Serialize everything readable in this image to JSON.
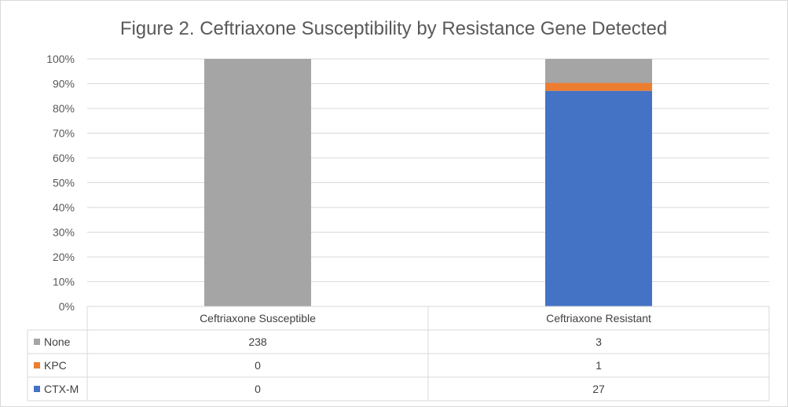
{
  "chart_data": {
    "type": "bar",
    "stacking": "percent",
    "title": "Figure 2. Ceftriaxone Susceptibility by Resistance Gene Detected",
    "categories": [
      "Ceftriaxone Susceptible",
      "Ceftriaxone Resistant"
    ],
    "series": [
      {
        "name": "CTX-M",
        "values": [
          0,
          27
        ],
        "color": "#4472c4"
      },
      {
        "name": "KPC",
        "values": [
          0,
          1
        ],
        "color": "#ed7d31"
      },
      {
        "name": "None",
        "values": [
          238,
          3
        ],
        "color": "#a5a5a5"
      }
    ],
    "data_table_order": [
      "None",
      "KPC",
      "CTX-M"
    ],
    "y_ticks": [
      "0%",
      "10%",
      "20%",
      "30%",
      "40%",
      "50%",
      "60%",
      "70%",
      "80%",
      "90%",
      "100%"
    ],
    "ylim": [
      0,
      1
    ],
    "grid": true,
    "legend": "data-table",
    "colors": {
      "grid": "#d9d9d9",
      "text": "#595959"
    }
  }
}
